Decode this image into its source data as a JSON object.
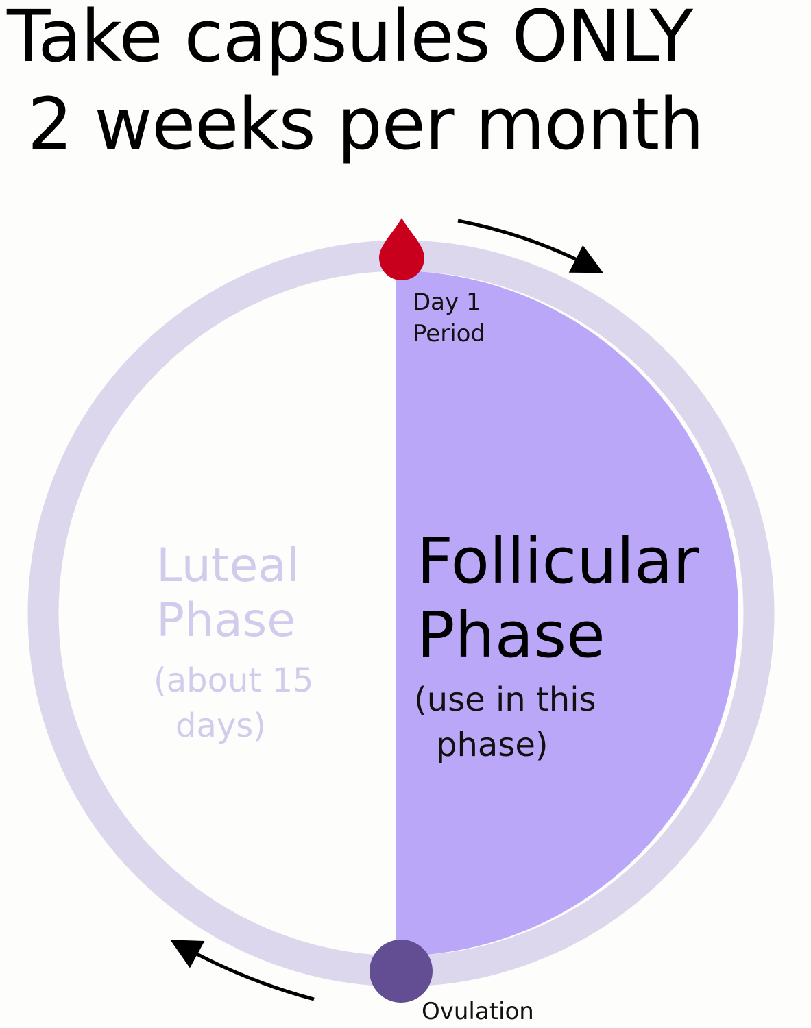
{
  "title": {
    "line1": "Take capsules ONLY",
    "line2": "2 weeks per month"
  },
  "cycle": {
    "start": {
      "line1": "Day 1",
      "line2": "Period",
      "icon": "blood-drop-icon"
    },
    "follicular": {
      "name_line1": "Follicular",
      "name_line2": "Phase",
      "note_line1": "(use in this",
      "note_line2": "phase)"
    },
    "luteal": {
      "name_line1": "Luteal",
      "name_line2": "Phase",
      "note_line1": "(about 15",
      "note_line2": "days)"
    },
    "ovulation": {
      "label": "Ovulation"
    }
  },
  "colors": {
    "ring": "#dcd7ec",
    "follicular": "#bba7f8",
    "luteal_text": "#d3cbec",
    "drop": "#c8001e",
    "ovulation": "#634e94",
    "arrow": "#000000"
  }
}
